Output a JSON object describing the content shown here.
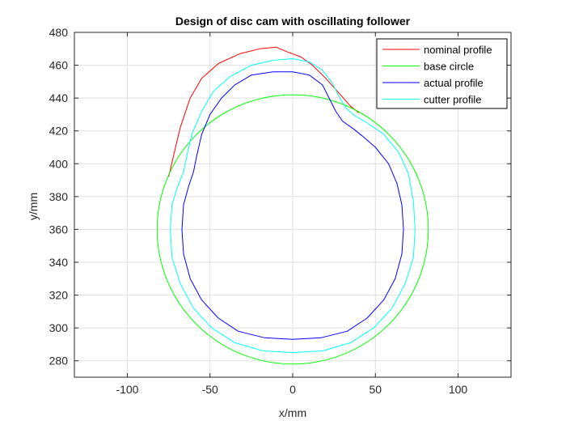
{
  "chart_data": {
    "type": "line",
    "title": "Design of disc cam with oscillating follower",
    "xlabel": "x/mm",
    "ylabel": "y/mm",
    "xlim": [
      -132,
      132
    ],
    "ylim": [
      270,
      480
    ],
    "x_ticks": [
      -100,
      -50,
      0,
      50,
      100
    ],
    "y_ticks": [
      280,
      300,
      320,
      340,
      360,
      380,
      400,
      420,
      440,
      460,
      480
    ],
    "grid": true,
    "legend_position": "top-right",
    "aspect": "equal",
    "colors": {
      "nominal": "#ff0000",
      "base": "#00ff00",
      "actual": "#0000ff",
      "cutter": "#00ffff",
      "axis": "#262626",
      "grid": "#dfdfdf"
    },
    "series": [
      {
        "name": "nominal profile",
        "color": "#ff0000",
        "points": [
          [
            40,
            431
          ],
          [
            35,
            435
          ],
          [
            28,
            443
          ],
          [
            20,
            452
          ],
          [
            12,
            460
          ],
          [
            5,
            465
          ],
          [
            -3,
            468
          ],
          [
            -10,
            471
          ],
          [
            -20,
            470
          ],
          [
            -32,
            467
          ],
          [
            -45,
            461
          ],
          [
            -55,
            452
          ],
          [
            -62,
            440
          ],
          [
            -68,
            422
          ],
          [
            -72,
            405
          ],
          [
            -75,
            392
          ]
        ]
      },
      {
        "name": "base circle",
        "color": "#00ff00",
        "circle": {
          "cx": 0,
          "cy": 360,
          "r": 82
        }
      },
      {
        "name": "actual profile",
        "color": "#0000ff",
        "points": [
          [
            0,
            456
          ],
          [
            10,
            454
          ],
          [
            18,
            448
          ],
          [
            22,
            440
          ],
          [
            26,
            432
          ],
          [
            30,
            426
          ],
          [
            37,
            421
          ],
          [
            42,
            417
          ],
          [
            50,
            410
          ],
          [
            58,
            400
          ],
          [
            63,
            388
          ],
          [
            66,
            375
          ],
          [
            67,
            360
          ],
          [
            66,
            345
          ],
          [
            62,
            330
          ],
          [
            55,
            317
          ],
          [
            45,
            306
          ],
          [
            33,
            298
          ],
          [
            17,
            294
          ],
          [
            0,
            293
          ],
          [
            -17,
            294
          ],
          [
            -33,
            298
          ],
          [
            -45,
            306
          ],
          [
            -55,
            317
          ],
          [
            -62,
            330
          ],
          [
            -66,
            345
          ],
          [
            -67,
            360
          ],
          [
            -66,
            375
          ],
          [
            -63,
            386
          ],
          [
            -60,
            395
          ],
          [
            -58,
            405
          ],
          [
            -55,
            418
          ],
          [
            -50,
            430
          ],
          [
            -43,
            440
          ],
          [
            -35,
            448
          ],
          [
            -25,
            454
          ],
          [
            -12,
            456
          ],
          [
            0,
            456
          ]
        ]
      },
      {
        "name": "cutter profile",
        "color": "#00ffff",
        "points": [
          [
            0,
            464
          ],
          [
            10,
            462
          ],
          [
            18,
            457
          ],
          [
            24,
            449
          ],
          [
            28,
            441
          ],
          [
            32,
            434
          ],
          [
            38,
            429
          ],
          [
            45,
            425
          ],
          [
            55,
            418
          ],
          [
            64,
            407
          ],
          [
            70,
            394
          ],
          [
            73,
            377
          ],
          [
            74,
            360
          ],
          [
            73,
            343
          ],
          [
            68,
            327
          ],
          [
            60,
            312
          ],
          [
            49,
            300
          ],
          [
            35,
            291
          ],
          [
            18,
            286
          ],
          [
            0,
            285
          ],
          [
            -18,
            286
          ],
          [
            -35,
            291
          ],
          [
            -49,
            300
          ],
          [
            -60,
            312
          ],
          [
            -68,
            327
          ],
          [
            -73,
            343
          ],
          [
            -74,
            360
          ],
          [
            -73,
            375
          ],
          [
            -70,
            385
          ],
          [
            -66,
            395
          ],
          [
            -64,
            405
          ],
          [
            -61,
            418
          ],
          [
            -55,
            432
          ],
          [
            -48,
            444
          ],
          [
            -38,
            453
          ],
          [
            -25,
            460
          ],
          [
            -12,
            463
          ],
          [
            0,
            464
          ]
        ]
      }
    ]
  }
}
